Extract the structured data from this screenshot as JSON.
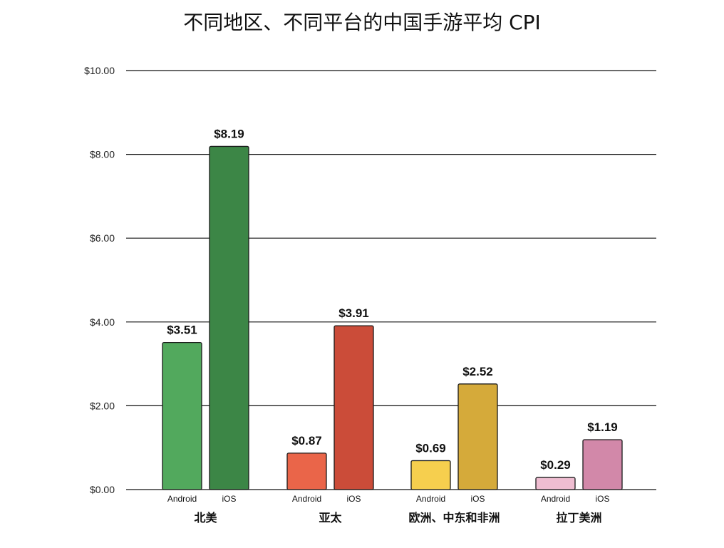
{
  "chart_data": {
    "type": "bar",
    "title": "不同地区、不同平台的中国手游平均 CPI",
    "categories": [
      "北美",
      "亚太",
      "欧洲、中东和非洲",
      "拉丁美洲"
    ],
    "sub_categories": [
      "Android",
      "iOS"
    ],
    "values": [
      [
        3.51,
        8.19
      ],
      [
        0.87,
        3.91
      ],
      [
        0.69,
        2.52
      ],
      [
        0.29,
        1.19
      ]
    ],
    "value_labels": [
      [
        "$3.51",
        "$8.19"
      ],
      [
        "$0.87",
        "$3.91"
      ],
      [
        "$0.69",
        "$2.52"
      ],
      [
        "$0.29",
        "$1.19"
      ]
    ],
    "colors": [
      [
        "#52a95d",
        "#3c8646"
      ],
      [
        "#ea6549",
        "#cb4c39"
      ],
      [
        "#f6cf4e",
        "#d5aa3a"
      ],
      [
        "#efbdd1",
        "#d288a9"
      ]
    ],
    "yticks": [
      "$0.00",
      "$2.00",
      "$4.00",
      "$6.00",
      "$8.00",
      "$10.00"
    ],
    "ylim": [
      0,
      10
    ],
    "grid": true
  }
}
